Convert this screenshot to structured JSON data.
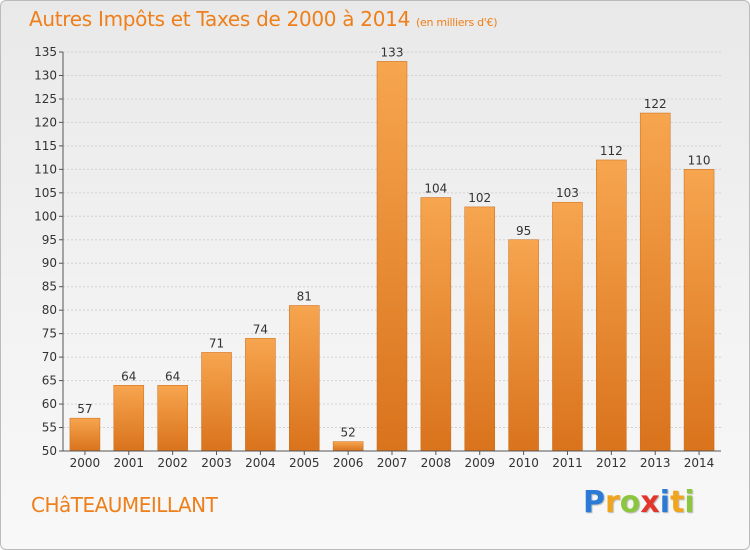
{
  "header": {
    "title": "Autres Impôts et Taxes de 2000 à 2014",
    "subtitle": "(en milliers d'€)"
  },
  "footer": {
    "town": "CHâTEAUMEILLANT",
    "logo": {
      "letters": [
        "P",
        "r",
        "o",
        "x",
        "i",
        "t",
        "i"
      ],
      "colors": [
        "#2b7bd6",
        "#f1a51c",
        "#8cc63f",
        "#e2362b",
        "#2b7bd6",
        "#f1a51c",
        "#8cc63f"
      ]
    }
  },
  "colors": {
    "accent": "#ef7f1a",
    "bar_light": "#f7a54f",
    "bar_dark": "#d9731c"
  },
  "chart_data": {
    "type": "bar",
    "categories": [
      "2000",
      "2001",
      "2002",
      "2003",
      "2004",
      "2005",
      "2006",
      "2007",
      "2008",
      "2009",
      "2010",
      "2011",
      "2012",
      "2013",
      "2014"
    ],
    "values": [
      57,
      64,
      64,
      71,
      74,
      81,
      52,
      133,
      104,
      102,
      95,
      103,
      112,
      122,
      110
    ],
    "ylim": [
      50,
      135
    ],
    "yticks": [
      50,
      55,
      60,
      65,
      70,
      75,
      80,
      85,
      90,
      95,
      100,
      105,
      110,
      115,
      120,
      125,
      130,
      135
    ],
    "grid": true
  }
}
